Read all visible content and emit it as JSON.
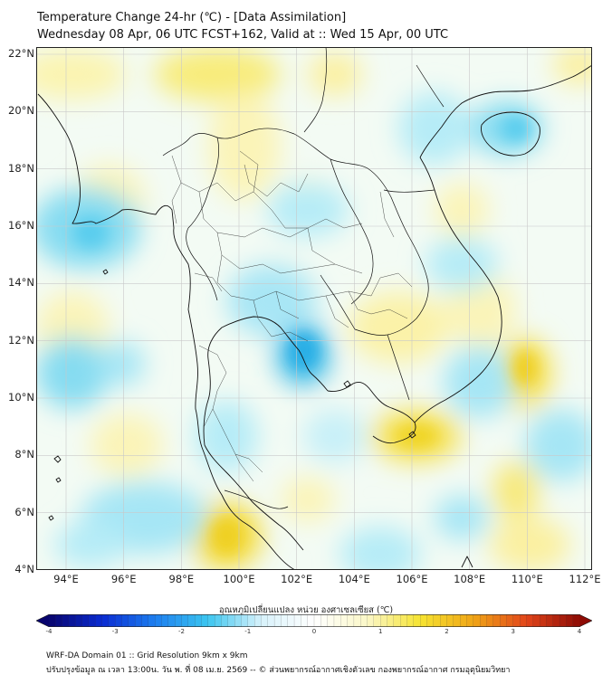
{
  "header": {
    "title": "Temperature Change 24-hr (℃) - [Data Assimilation]",
    "subtitle": "Wednesday 08 Apr, 06 UTC FCST+162, Valid at :: Wed 15 Apr, 00 UTC"
  },
  "map": {
    "lat_labels": [
      "22°N",
      "20°N",
      "18°N",
      "16°N",
      "14°N",
      "12°N",
      "10°N",
      "8°N",
      "6°N",
      "4°N"
    ],
    "lon_labels": [
      "94°E",
      "96°E",
      "98°E",
      "100°E",
      "102°E",
      "104°E",
      "106°E",
      "108°E",
      "110°E",
      "112°E"
    ],
    "lat_range": [
      4,
      22
    ],
    "lon_range": [
      93,
      112.3
    ],
    "gridlines": true
  },
  "colorbar": {
    "title": "อุณหภูมิเปลี่ยนแปลง หน่วย องศาเซลเซียส (℃)",
    "ticks": [
      "-4",
      "-3",
      "-2",
      "-1",
      "0",
      "1",
      "2",
      "3",
      "4"
    ],
    "range": [
      -4,
      4
    ],
    "colors": [
      "#08046e",
      "#0a2bd2",
      "#1d7ff0",
      "#3cc6f0",
      "#d8f2fb",
      "#ffffff",
      "#fbf7c8",
      "#f6e431",
      "#f0a516",
      "#e2451a",
      "#8e0b05"
    ]
  },
  "footer": {
    "line1": "WRF-DA Domain 01 :: Grid Resolution 9km x 9km",
    "line2": "ปรับปรุงข้อมูล ณ เวลา 13:00น. วัน พ. ที่ 08 เม.ย. 2569 -- © ส่วนพยากรณ์อากาศเชิงตัวเลข กองพยากรณ์อากาศ กรมอุตุนิยมวิทยา"
  }
}
